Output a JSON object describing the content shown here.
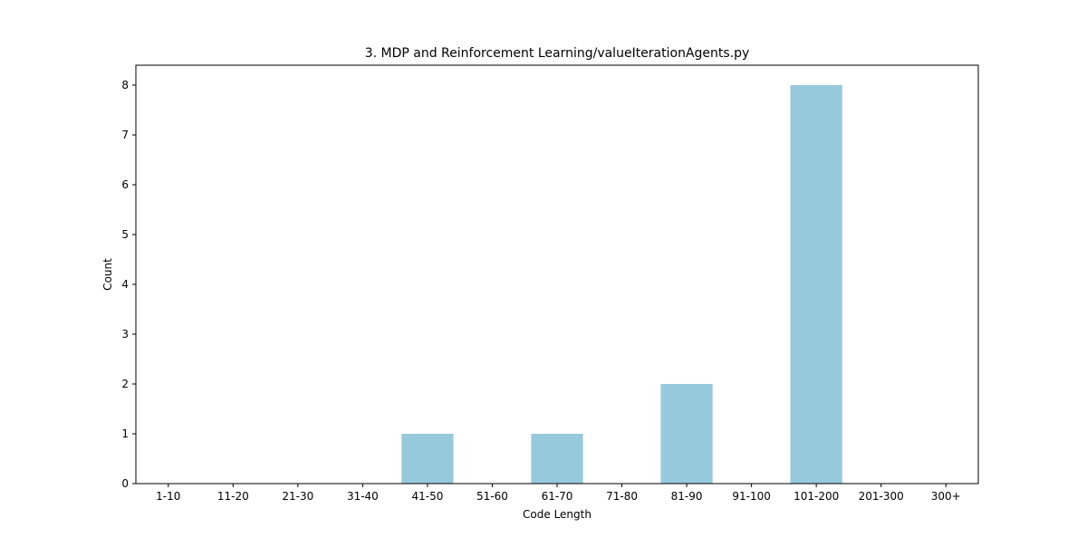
{
  "chart_data": {
    "type": "bar",
    "title": "3. MDP and Reinforcement Learning/valueIterationAgents.py",
    "xlabel": "Code Length",
    "ylabel": "Count",
    "categories": [
      "1-10",
      "11-20",
      "21-30",
      "31-40",
      "41-50",
      "51-60",
      "61-70",
      "71-80",
      "81-90",
      "91-100",
      "101-200",
      "201-300",
      "300+"
    ],
    "values": [
      0,
      0,
      0,
      0,
      1,
      0,
      1,
      0,
      2,
      0,
      8,
      0,
      0
    ],
    "ylim": [
      0,
      8.4
    ],
    "yticks": [
      0,
      1,
      2,
      3,
      4,
      5,
      6,
      7,
      8
    ],
    "bar_color": "#96c9dc",
    "grid": false,
    "legend": "none"
  }
}
